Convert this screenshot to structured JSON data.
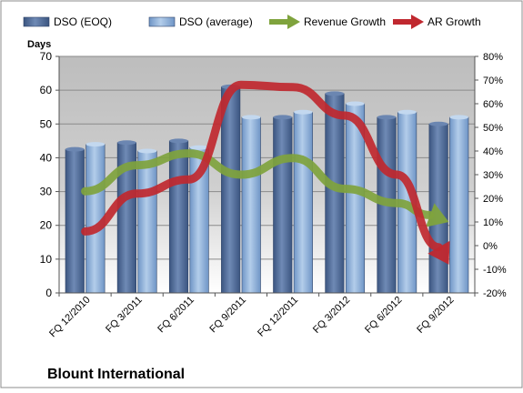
{
  "chart_data": {
    "type": "bar",
    "title": "Blount International",
    "y_left_label": "Days",
    "y_left_ticks": [
      "0",
      "10",
      "20",
      "30",
      "40",
      "50",
      "60",
      "70"
    ],
    "y_left_range": [
      0,
      70
    ],
    "y_right_ticks": [
      "-20%",
      "-10%",
      "0%",
      "10%",
      "20%",
      "30%",
      "40%",
      "50%",
      "60%",
      "70%",
      "80%"
    ],
    "y_right_range": [
      -20,
      80
    ],
    "grid": true,
    "legend_position": "top",
    "categories": [
      "FQ 12/2010",
      "FQ 3/2011",
      "FQ 6/2011",
      "FQ 9/2011",
      "FQ 12/2011",
      "FQ 3/2012",
      "FQ 6/2012",
      "FQ 9/2012"
    ],
    "series": [
      {
        "name": "DSO (EOQ)",
        "kind": "bar",
        "axis": "left",
        "color": "#4f6b95",
        "values": [
          42.5,
          44.5,
          45,
          61,
          52,
          59,
          52,
          50
        ]
      },
      {
        "name": "DSO (average)",
        "kind": "bar",
        "axis": "left",
        "color": "#8eb2da",
        "values": [
          44,
          42,
          43,
          52,
          53.5,
          56,
          53.5,
          52
        ]
      },
      {
        "name": "Revenue Growth",
        "kind": "arrow-line",
        "axis": "right",
        "color": "#7fa33d",
        "values": [
          23,
          34,
          39,
          30,
          37,
          24,
          18,
          10
        ]
      },
      {
        "name": "AR Growth",
        "kind": "arrow-line",
        "axis": "right",
        "color": "#c0282f",
        "values": [
          6,
          22,
          28,
          68,
          67,
          55,
          30,
          -8
        ]
      }
    ]
  }
}
